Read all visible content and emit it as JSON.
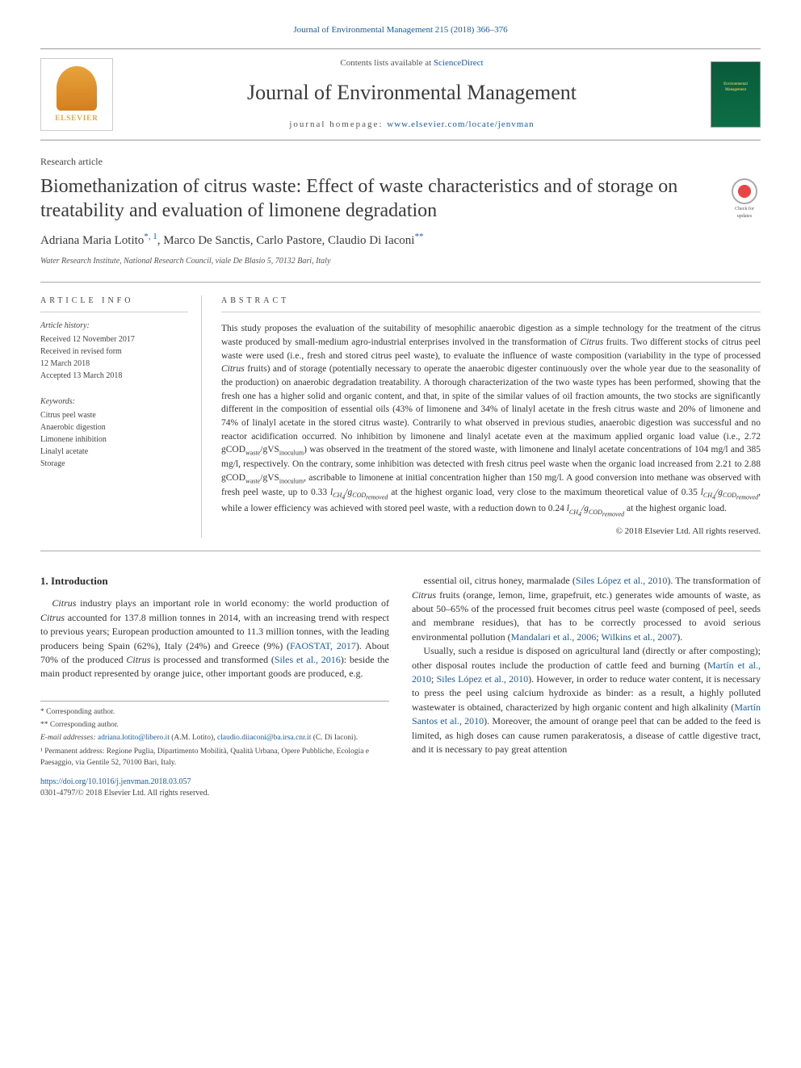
{
  "citation": "Journal of Environmental Management 215 (2018) 366–376",
  "header": {
    "contents_prefix": "Contents lists available at ",
    "contents_link": "ScienceDirect",
    "journal_name": "Journal of Environmental Management",
    "homepage_prefix": "journal homepage: ",
    "homepage_url": "www.elsevier.com/locate/jenvman",
    "publisher_logo_text": "ELSEVIER",
    "cover_text": "Environmental Management"
  },
  "article": {
    "type": "Research article",
    "title": "Biomethanization of citrus waste: Effect of waste characteristics and of storage on treatability and evaluation of limonene degradation",
    "crossmark_label": "Check for updates",
    "authors_html": "Adriana Maria Lotito<span class='corr'>*, 1</span>, Marco De Sanctis, Carlo Pastore, Claudio Di Iaconi<span class='corr'>**</span>",
    "affiliation": "Water Research Institute, National Research Council, viale De Blasio 5, 70132 Bari, Italy"
  },
  "info": {
    "heading": "ARTICLE INFO",
    "history_label": "Article history:",
    "history_lines": [
      "Received 12 November 2017",
      "Received in revised form",
      "12 March 2018",
      "Accepted 13 March 2018"
    ],
    "keywords_label": "Keywords:",
    "keywords": [
      "Citrus peel waste",
      "Anaerobic digestion",
      "Limonene inhibition",
      "Linalyl acetate",
      "Storage"
    ]
  },
  "abstract": {
    "heading": "ABSTRACT",
    "text_html": "This study proposes the evaluation of the suitability of mesophilic anaerobic digestion as a simple technology for the treatment of the citrus waste produced by small-medium agro-industrial enterprises involved in the transformation of <em>Citrus</em> fruits. Two different stocks of citrus peel waste were used (i.e., fresh and stored citrus peel waste), to evaluate the influence of waste composition (variability in the type of processed <em>Citrus</em> fruits) and of storage (potentially necessary to operate the anaerobic digester continuously over the whole year due to the seasonality of the production) on anaerobic degradation treatability. A thorough characterization of the two waste types has been performed, showing that the fresh one has a higher solid and organic content, and that, in spite of the similar values of oil fraction amounts, the two stocks are significantly different in the composition of essential oils (43% of limonene and 34% of linalyl acetate in the fresh citrus waste and 20% of limonene and 74% of linalyl acetate in the stored citrus waste). Contrarily to what observed in previous studies, anaerobic digestion was successful and no reactor acidification occurred. No inhibition by limonene and linalyl acetate even at the maximum applied organic load value (i.e., 2.72 gCOD<sub>waste</sub>/gVS<sub>inoculum</sub>) was observed in the treatment of the stored waste, with limonene and linalyl acetate concentrations of 104 mg/l and 385 mg/l, respectively. On the contrary, some inhibition was detected with fresh citrus peel waste when the organic load increased from 2.21 to 2.88 gCOD<sub>waste</sub>/gVS<sub>inoculum</sub>, ascribable to limonene at initial concentration higher than 150 mg/l. A good conversion into methane was observed with fresh peel waste, up to 0.33 <em>l<sub>CH<sub>4</sub></sub>/g<sub>COD<sub>removed</sub></sub></em> at the highest organic load, very close to the maximum theoretical value of 0.35 <em>l<sub>CH<sub>4</sub></sub>/g<sub>COD<sub>removed</sub></sub></em>, while a lower efficiency was achieved with stored peel waste, with a reduction down to 0.24 <em>l<sub>CH<sub>4</sub></sub>/g<sub>COD<sub>removed</sub></sub></em> at the highest organic load.",
    "copyright": "© 2018 Elsevier Ltd. All rights reserved."
  },
  "intro": {
    "heading": "1. Introduction",
    "col1_paras": [
      "<em>Citrus</em> industry plays an important role in world economy: the world production of <em>Citrus</em> accounted for 137.8 million tonnes in 2014, with an increasing trend with respect to previous years; European production amounted to 11.3 million tonnes, with the leading producers being Spain (62%), Italy (24%) and Greece (9%) (<a class='cite'>FAOSTAT, 2017</a>). About 70% of the produced <em>Citrus</em> is processed and transformed (<a class='cite'>Siles et al., 2016</a>): beside the main product represented by orange juice, other important goods are produced, e.g."
    ],
    "col2_paras": [
      "essential oil, citrus honey, marmalade (<a class='cite'>Siles López et al., 2010</a>). The transformation of <em>Citrus</em> fruits (orange, lemon, lime, grapefruit, etc.) generates wide amounts of waste, as about 50–65% of the processed fruit becomes citrus peel waste (composed of peel, seeds and membrane residues), that has to be correctly processed to avoid serious environmental pollution (<a class='cite'>Mandalari et al., 2006</a>; <a class='cite'>Wilkins et al., 2007</a>).",
      "Usually, such a residue is disposed on agricultural land (directly or after composting); other disposal routes include the production of cattle feed and burning (<a class='cite'>Martín et al., 2010</a>; <a class='cite'>Siles López et al., 2010</a>). However, in order to reduce water content, it is necessary to press the peel using calcium hydroxide as binder: as a result, a highly polluted wastewater is obtained, characterized by high organic content and high alkalinity (<a class='cite'>Martín Santos et al., 2010</a>). Moreover, the amount of orange peel that can be added to the feed is limited, as high doses can cause rumen parakeratosis, a disease of cattle digestive tract, and it is necessary to pay great attention"
    ]
  },
  "footnotes": {
    "lines": [
      "* Corresponding author.",
      "** Corresponding author."
    ],
    "email_label": "E-mail addresses: ",
    "email1": "adriana.lotito@libero.it",
    "email1_after": " (A.M. Lotito), ",
    "email2": "claudio.diiaconi@ba.irsa.cnr.it",
    "email2_after": " (C. Di Iaconi).",
    "perm_address": "¹ Permanent address: Regione Puglia, Dipartimento Mobilità, Qualità Urbana, Opere Pubbliche, Ecologia e Paesaggio, via Gentile 52, 70100 Bari, Italy."
  },
  "doi": {
    "url": "https://doi.org/10.1016/j.jenvman.2018.03.057",
    "issn_line": "0301-4797/© 2018 Elsevier Ltd. All rights reserved."
  },
  "colors": {
    "link": "#1a5da8",
    "text": "#2a2a2a",
    "muted": "#555",
    "rule": "#aaa",
    "elsevier_orange": "#e8a33c",
    "cover_green": "#0c6e47"
  }
}
